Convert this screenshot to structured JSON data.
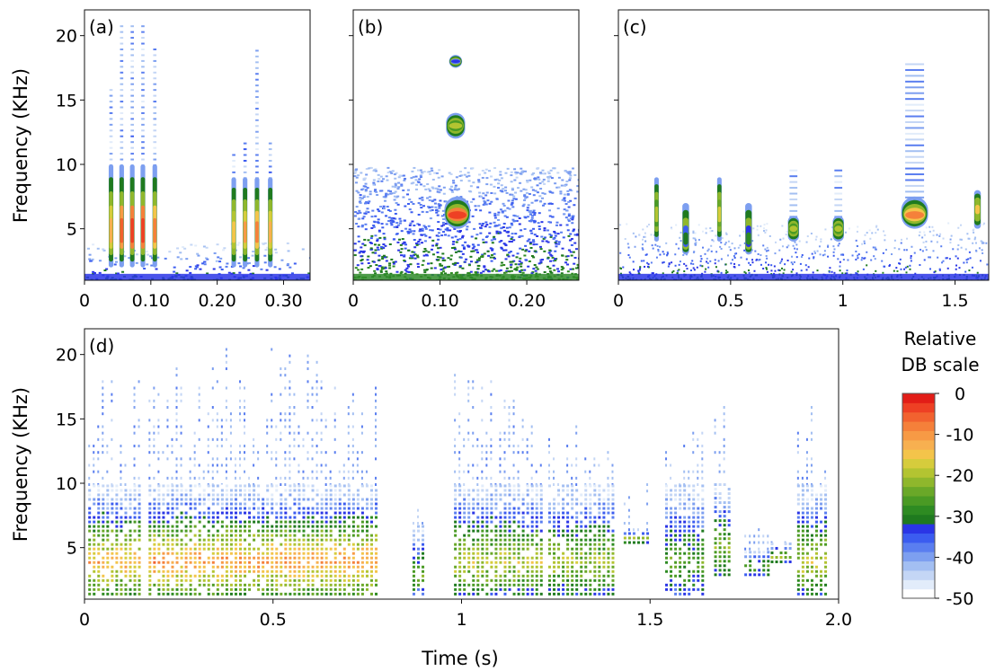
{
  "figure": {
    "ylabel": "Frequency (KHz)",
    "xlabel": "Time (s)"
  },
  "colorbar": {
    "title_lines": [
      "Relative",
      "DB scale"
    ],
    "ticks": [
      {
        "value": 0,
        "label": "0"
      },
      {
        "value": -10,
        "label": "-10"
      },
      {
        "value": -20,
        "label": "-20"
      },
      {
        "value": -30,
        "label": "-30"
      },
      {
        "value": -40,
        "label": "-40"
      },
      {
        "value": -50,
        "label": "-50"
      }
    ],
    "colors": [
      "#ffffff",
      "#e2ecfa",
      "#c4d6f5",
      "#a3bff2",
      "#7d9ff0",
      "#5a7ef0",
      "#3b5cf0",
      "#2a35e6",
      "#1f7a1f",
      "#2e8b22",
      "#4a9a24",
      "#6aa828",
      "#8fb72c",
      "#b3c431",
      "#d6cc3c",
      "#f4c44a",
      "#f7b050",
      "#f79a45",
      "#f5803a",
      "#f2622f",
      "#ee4024",
      "#e21d17"
    ]
  },
  "chart_data": [
    {
      "id": "a",
      "panel_label": "(a)",
      "type": "heatmap",
      "xlim": [
        0,
        0.34
      ],
      "ylim": [
        1,
        22
      ],
      "xticks": [
        {
          "v": 0,
          "label": "0"
        },
        {
          "v": 0.1,
          "label": "0.10"
        },
        {
          "v": 0.2,
          "label": "0.20"
        },
        {
          "v": 0.3,
          "label": "0.30"
        }
      ],
      "yticks": [
        {
          "v": 5,
          "label": "5"
        },
        {
          "v": 10,
          "label": "10"
        },
        {
          "v": 15,
          "label": "15"
        },
        {
          "v": 20,
          "label": "20"
        }
      ],
      "show_ylabel": true,
      "calls": [
        {
          "t": 0.04,
          "w": 0.007,
          "f_low": 2,
          "f_high": 10,
          "peak_db": -12,
          "peak_f": 4.5,
          "fmax": 16
        },
        {
          "t": 0.056,
          "w": 0.007,
          "f_low": 2,
          "f_high": 10,
          "peak_db": -5,
          "peak_f": 4.5,
          "fmax": 21
        },
        {
          "t": 0.072,
          "w": 0.007,
          "f_low": 2,
          "f_high": 10,
          "peak_db": -3,
          "peak_f": 4.5,
          "fmax": 21
        },
        {
          "t": 0.088,
          "w": 0.007,
          "f_low": 2,
          "f_high": 10,
          "peak_db": -3,
          "peak_f": 4.5,
          "fmax": 21
        },
        {
          "t": 0.106,
          "w": 0.007,
          "f_low": 2,
          "f_high": 10,
          "peak_db": -8,
          "peak_f": 4.5,
          "fmax": 19
        },
        {
          "t": 0.225,
          "w": 0.007,
          "f_low": 2,
          "f_high": 9,
          "peak_db": -14,
          "peak_f": 4.5,
          "fmax": 11
        },
        {
          "t": 0.242,
          "w": 0.007,
          "f_low": 2,
          "f_high": 9,
          "peak_db": -10,
          "peak_f": 4.5,
          "fmax": 12
        },
        {
          "t": 0.26,
          "w": 0.007,
          "f_low": 2,
          "f_high": 9,
          "peak_db": -9,
          "peak_f": 4.5,
          "fmax": 19
        },
        {
          "t": 0.28,
          "w": 0.007,
          "f_low": 2,
          "f_high": 9,
          "peak_db": -12,
          "peak_f": 4.5,
          "fmax": 12
        }
      ],
      "noise_floor_khz": 2
    },
    {
      "id": "b",
      "panel_label": "(b)",
      "type": "heatmap",
      "xlim": [
        0,
        0.26
      ],
      "ylim": [
        1,
        22
      ],
      "xticks": [
        {
          "v": 0,
          "label": "0"
        },
        {
          "v": 0.1,
          "label": "0.10"
        },
        {
          "v": 0.2,
          "label": "0.20"
        }
      ],
      "yticks": [
        {
          "v": 5,
          "label": ""
        },
        {
          "v": 10,
          "label": ""
        },
        {
          "v": 15,
          "label": ""
        },
        {
          "v": 20,
          "label": ""
        }
      ],
      "show_ylabel": false,
      "calls": [
        {
          "t": 0.12,
          "w": 0.03,
          "f_low": 5,
          "f_high": 7.5,
          "peak_db": -3,
          "peak_f": 6,
          "fmax": 7.5
        },
        {
          "t": 0.118,
          "w": 0.022,
          "f_low": 12,
          "f_high": 14,
          "peak_db": -20,
          "peak_f": 13,
          "fmax": 14
        },
        {
          "t": 0.118,
          "w": 0.015,
          "f_low": 17.5,
          "f_high": 18.5,
          "peak_db": -32,
          "peak_f": 18,
          "fmax": 18.5
        }
      ],
      "noise_floor_khz": 8
    },
    {
      "id": "c",
      "panel_label": "(c)",
      "type": "heatmap",
      "xlim": [
        0,
        1.65
      ],
      "ylim": [
        1,
        22
      ],
      "xticks": [
        {
          "v": 0,
          "label": "0"
        },
        {
          "v": 0.5,
          "label": "0.5"
        },
        {
          "v": 1,
          "label": "1"
        },
        {
          "v": 1.5,
          "label": "1.5"
        }
      ],
      "yticks": [
        {
          "v": 5,
          "label": ""
        },
        {
          "v": 10,
          "label": ""
        },
        {
          "v": 15,
          "label": ""
        },
        {
          "v": 20,
          "label": ""
        }
      ],
      "show_ylabel": false,
      "calls": [
        {
          "t": 0.17,
          "w": 0.02,
          "f_low": 4,
          "f_high": 9,
          "peak_db": -20,
          "peak_f": 6,
          "fmax": 9
        },
        {
          "t": 0.3,
          "w": 0.03,
          "f_low": 3,
          "f_high": 7,
          "peak_db": -30,
          "peak_f": 4,
          "fmax": 7
        },
        {
          "t": 0.45,
          "w": 0.02,
          "f_low": 4,
          "f_high": 9,
          "peak_db": -18,
          "peak_f": 6,
          "fmax": 9
        },
        {
          "t": 0.58,
          "w": 0.03,
          "f_low": 3,
          "f_high": 7,
          "peak_db": -28,
          "peak_f": 4,
          "fmax": 7
        },
        {
          "t": 0.78,
          "w": 0.05,
          "f_low": 4,
          "f_high": 6,
          "peak_db": -20,
          "peak_f": 5,
          "fmax": 10
        },
        {
          "t": 0.98,
          "w": 0.05,
          "f_low": 4,
          "f_high": 6,
          "peak_db": -20,
          "peak_f": 5,
          "fmax": 10
        },
        {
          "t": 1.32,
          "w": 0.12,
          "f_low": 5,
          "f_high": 7.5,
          "peak_db": -8,
          "peak_f": 6,
          "fmax": 18
        },
        {
          "t": 1.6,
          "w": 0.03,
          "f_low": 5,
          "f_high": 8,
          "peak_db": -15,
          "peak_f": 6.5,
          "fmax": 8
        }
      ],
      "noise_floor_khz": 3
    },
    {
      "id": "d",
      "panel_label": "(d)",
      "type": "heatmap",
      "xlim": [
        0,
        2.0
      ],
      "ylim": [
        1,
        22
      ],
      "xticks": [
        {
          "v": 0,
          "label": "0"
        },
        {
          "v": 0.5,
          "label": "0.5"
        },
        {
          "v": 1,
          "label": "1"
        },
        {
          "v": 1.5,
          "label": "1.5"
        },
        {
          "v": 2.0,
          "label": "2.0"
        }
      ],
      "yticks": [
        {
          "v": 5,
          "label": "5"
        },
        {
          "v": 10,
          "label": "10"
        },
        {
          "v": 15,
          "label": "15"
        },
        {
          "v": 20,
          "label": "20"
        }
      ],
      "show_ylabel": true,
      "show_xlabel": true,
      "segments": [
        {
          "t0": 0.01,
          "t1": 0.15,
          "f_low": 1.5,
          "f_high": 10,
          "peak_db": -12,
          "fmax": 19
        },
        {
          "t0": 0.17,
          "t1": 0.78,
          "f_low": 1.5,
          "f_high": 10,
          "peak_db": -10,
          "fmax": 21
        },
        {
          "t0": 0.87,
          "t1": 0.9,
          "f_low": 1.5,
          "f_high": 7,
          "peak_db": -25,
          "fmax": 9
        },
        {
          "t0": 0.98,
          "t1": 1.22,
          "f_low": 1.5,
          "f_high": 10,
          "peak_db": -18,
          "fmax": 19
        },
        {
          "t0": 1.23,
          "t1": 1.4,
          "f_low": 1.5,
          "f_high": 10,
          "peak_db": -20,
          "fmax": 15
        },
        {
          "t0": 1.43,
          "t1": 1.49,
          "f_low": 5.5,
          "f_high": 6.5,
          "peak_db": -18,
          "fmax": 13
        },
        {
          "t0": 1.54,
          "t1": 1.64,
          "f_low": 1.5,
          "f_high": 10,
          "peak_db": -25,
          "fmax": 15
        },
        {
          "t0": 1.67,
          "t1": 1.71,
          "f_low": 3,
          "f_high": 10,
          "peak_db": -22,
          "fmax": 17
        },
        {
          "t0": 1.75,
          "t1": 1.81,
          "f_low": 3,
          "f_high": 5,
          "peak_db": -25,
          "fmax": 7
        },
        {
          "t0": 1.82,
          "t1": 1.88,
          "f_low": 4,
          "f_high": 5.5,
          "peak_db": -20,
          "fmax": 6
        },
        {
          "t0": 1.89,
          "t1": 1.97,
          "f_low": 1.5,
          "f_high": 10,
          "peak_db": -18,
          "fmax": 20
        }
      ]
    }
  ]
}
